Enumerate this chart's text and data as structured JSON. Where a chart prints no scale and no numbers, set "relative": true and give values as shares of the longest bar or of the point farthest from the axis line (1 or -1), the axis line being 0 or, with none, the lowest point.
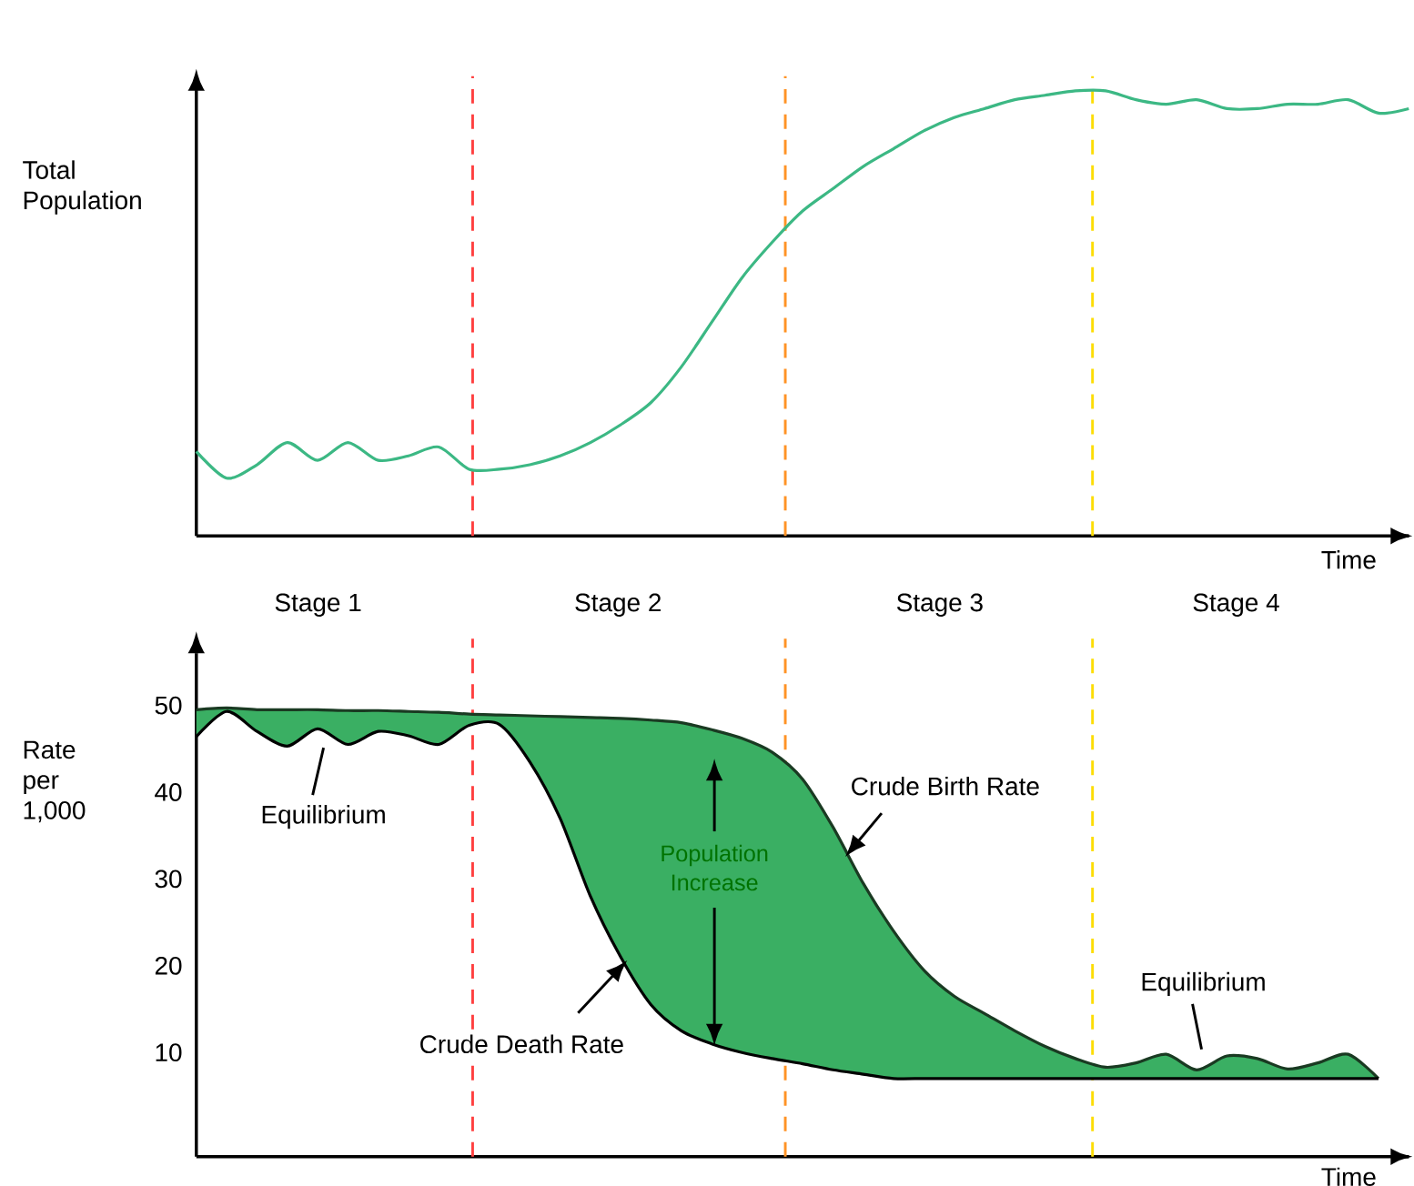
{
  "chart_data": [
    {
      "type": "line",
      "ylabel": "Total Population",
      "xlabel": "Time",
      "relative": true,
      "tick_labels": false,
      "categories": [
        null,
        null,
        null,
        null,
        null,
        null,
        null,
        null,
        null,
        null,
        null,
        null,
        null,
        null,
        null,
        null,
        null,
        null,
        null,
        null,
        null,
        null,
        null,
        null,
        null,
        null,
        null,
        null,
        null,
        null,
        null,
        null,
        null,
        null,
        null,
        null,
        null,
        null,
        null,
        null,
        null
      ],
      "series": [
        {
          "color": "#3cb884",
          "values": [
            0.19,
            0.13,
            0.16,
            0.21,
            0.17,
            0.21,
            0.17,
            0.18,
            0.2,
            0.15,
            0.15,
            0.16,
            0.18,
            0.21,
            0.25,
            0.3,
            0.38,
            0.48,
            0.58,
            0.66,
            0.73,
            0.78,
            0.83,
            0.87,
            0.91,
            0.94,
            0.96,
            0.98,
            0.99,
            1.0,
            1.0,
            0.98,
            0.97,
            0.98,
            0.96,
            0.96,
            0.97,
            0.97,
            0.98,
            0.95,
            0.96
          ]
        }
      ],
      "annotations": [
        "Stage 1",
        "Stage 2",
        "Stage 3",
        "Stage 4"
      ]
    },
    {
      "type": "line",
      "ylabel": "Rate per 1,000",
      "xlabel": "Time",
      "tick_labels": "y",
      "ylim": [
        -2,
        56
      ],
      "yticks": [
        10,
        20,
        30,
        40,
        50
      ],
      "categories": [
        null,
        null,
        null,
        null,
        null,
        null,
        null,
        null,
        null,
        null,
        null,
        null,
        null,
        null,
        null,
        null,
        null,
        null,
        null,
        null,
        null,
        null,
        null,
        null,
        null,
        null,
        null,
        null,
        null,
        null,
        null,
        null,
        null,
        null,
        null,
        null,
        null,
        null,
        null,
        null,
        null
      ],
      "series": [
        {
          "name": "Crude Birth Rate",
          "color": "#1a3a22",
          "values": [
            49.5,
            49.7,
            49.5,
            49.5,
            49.5,
            49.4,
            49.4,
            49.3,
            49.2,
            49,
            48.9,
            48.8,
            48.7,
            48.6,
            48.5,
            48.3,
            48,
            47.2,
            46.2,
            44.6,
            41.5,
            36,
            29.5,
            24,
            19.5,
            16.5,
            14.5,
            12.5,
            10.7,
            9.3,
            8.3,
            8.8,
            9.8,
            8,
            9.6,
            9.3,
            8.1,
            8.8,
            9.8,
            7,
            null
          ]
        },
        {
          "name": "Crude Death Rate",
          "color": "#000000",
          "values": [
            46.4,
            49.3,
            47,
            45.3,
            47.3,
            45.5,
            47,
            46.5,
            45.5,
            47.7,
            47.8,
            43.5,
            37,
            28,
            21,
            15.5,
            12.5,
            11,
            10,
            9.3,
            8.7,
            8,
            7.5,
            7,
            7,
            7,
            7,
            7,
            7,
            7,
            7,
            7,
            7,
            7,
            7,
            7,
            7,
            7,
            7,
            7,
            null
          ]
        }
      ],
      "annotations": [
        "Equilibrium",
        "Population Increase",
        "Equilibrium"
      ]
    }
  ]
}
